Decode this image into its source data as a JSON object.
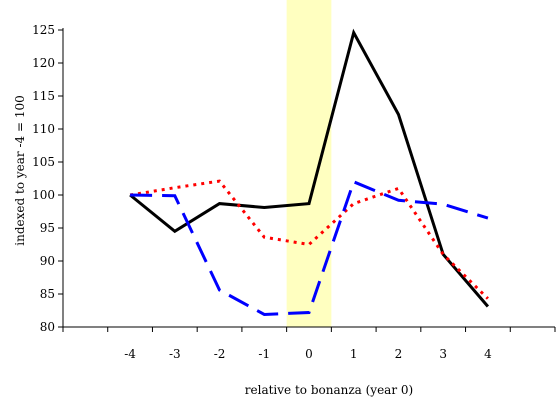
{
  "chart_data": {
    "type": "line",
    "title": "",
    "xlabel": "relative to bonanza (year 0)",
    "ylabel": "indexed to year -4 = 100",
    "x": [
      -4,
      -3,
      -2,
      -1,
      0,
      1,
      2,
      3,
      4
    ],
    "x_tick_labels": [
      "-4",
      "-3",
      "-2",
      "-1",
      "0",
      "1",
      "2",
      "3",
      "4"
    ],
    "y_ticks": [
      80,
      85,
      90,
      95,
      100,
      105,
      110,
      115,
      120,
      125
    ],
    "ylim": [
      80,
      125
    ],
    "xlim": [
      -5.5,
      5.5
    ],
    "highlight_band": {
      "x_from": -0.5,
      "x_to": 0.5,
      "color": "#ffffc0"
    },
    "grid": false,
    "legend": "none",
    "series": [
      {
        "style": "solid",
        "color": "#000000",
        "values": [
          100,
          94.5,
          98.7,
          98.1,
          98.7,
          124.6,
          112.2,
          91.0,
          83.1
        ]
      },
      {
        "style": "dotted",
        "color": "#ff0000",
        "values": [
          100,
          101.1,
          102.1,
          93.6,
          92.5,
          98.7,
          101.0,
          91.0,
          84.3
        ]
      },
      {
        "style": "dashed",
        "color": "#0000ff",
        "values": [
          100,
          99.9,
          85.6,
          81.9,
          82.2,
          102.0,
          99.2,
          98.6,
          96.5
        ]
      }
    ]
  }
}
